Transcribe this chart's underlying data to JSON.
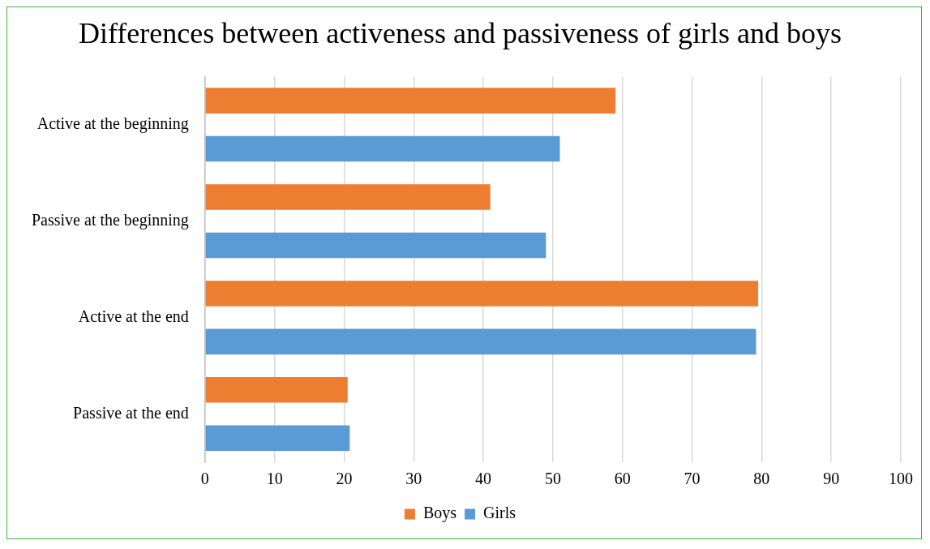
{
  "chart_data": {
    "type": "bar",
    "orientation": "horizontal",
    "title": "Differences between activeness and passiveness of girls and boys",
    "categories": [
      "Active at the beginning",
      "Passive at the beginning",
      "Active at the end",
      "Passive at the end"
    ],
    "series": [
      {
        "name": "Boys",
        "color": "#ed7d31",
        "values": [
          59,
          41,
          79.5,
          20.5
        ]
      },
      {
        "name": "Girls",
        "color": "#5b9bd5",
        "values": [
          51,
          49,
          79.2,
          20.8
        ]
      }
    ],
    "xlim": [
      0,
      100
    ],
    "xticks": [
      0,
      10,
      20,
      30,
      40,
      50,
      60,
      70,
      80,
      90,
      100
    ],
    "grid": "x",
    "legend": "bottom"
  }
}
